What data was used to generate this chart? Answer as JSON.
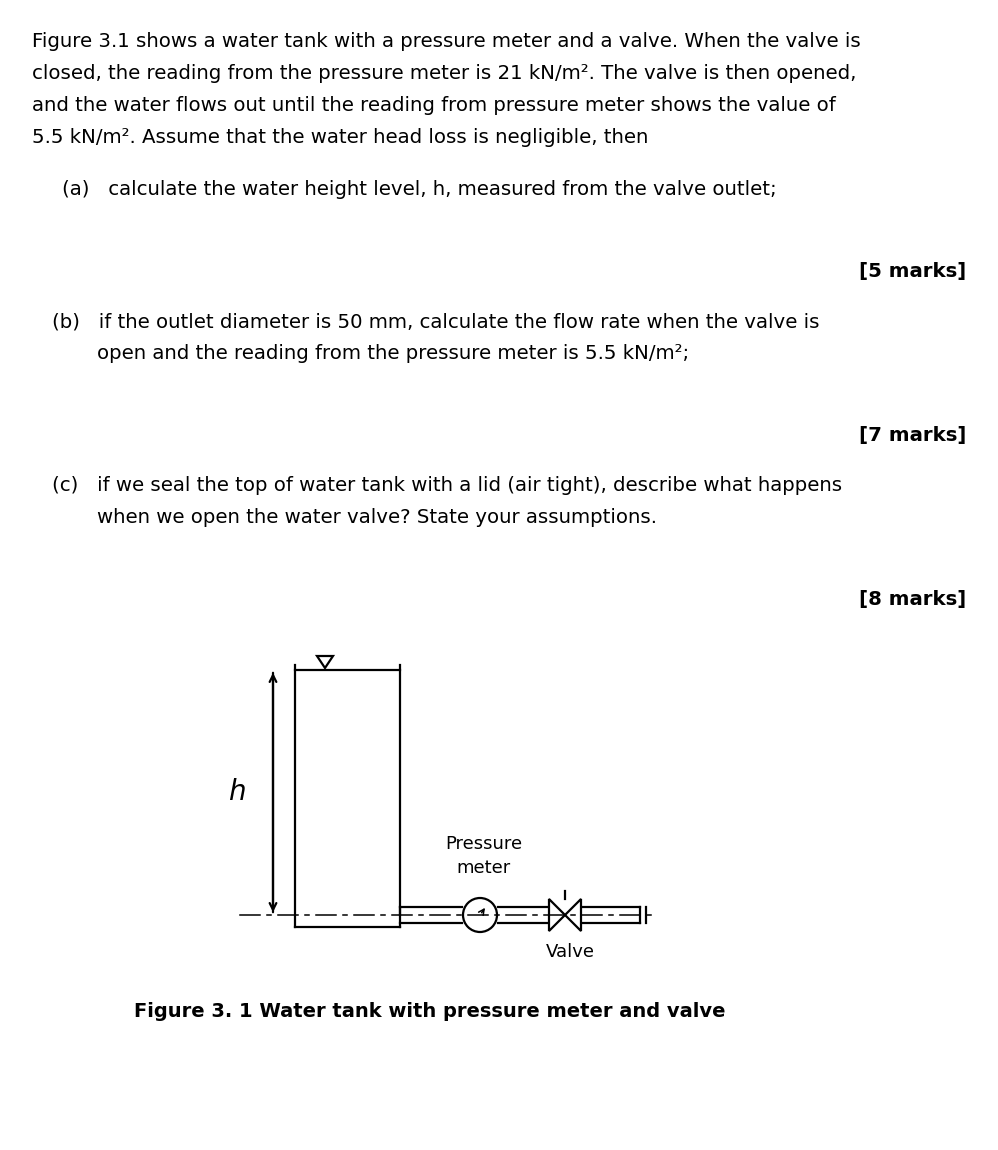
{
  "background_color": "#ffffff",
  "text_color": "#000000",
  "para_lines": [
    "Figure 3.1 shows a water tank with a pressure meter and a valve. When the valve is",
    "closed, the reading from the pressure meter is 21 kN/m². The valve is then opened,",
    "and the water flows out until the reading from pressure meter shows the value of",
    "5.5 kN/m². Assume that the water head loss is negligible, then"
  ],
  "part_a_text": "(a)   calculate the water height level, h, measured from the valve outlet;",
  "marks_a": "[5 marks]",
  "part_b_line1": "(b)   if the outlet diameter is 50 mm, calculate the flow rate when the valve is",
  "part_b_line2": "        open and the reading from the pressure meter is 5.5 kN/m²;",
  "marks_b": "[7 marks]",
  "part_c_line1": "(c)   if we seal the top of water tank with a lid (air tight), describe what happens",
  "part_c_line2": "        when we open the water valve? State your assumptions.",
  "marks_c": "[8 marks]",
  "figure_caption": "Figure 3. 1 Water tank with pressure meter and valve",
  "label_h": "h",
  "label_pressure": "Pressure\nmeter",
  "label_valve": "Valve",
  "font_size_body": 14.2,
  "font_size_marks": 14.2,
  "font_size_caption": 14.0,
  "lw": 1.6
}
